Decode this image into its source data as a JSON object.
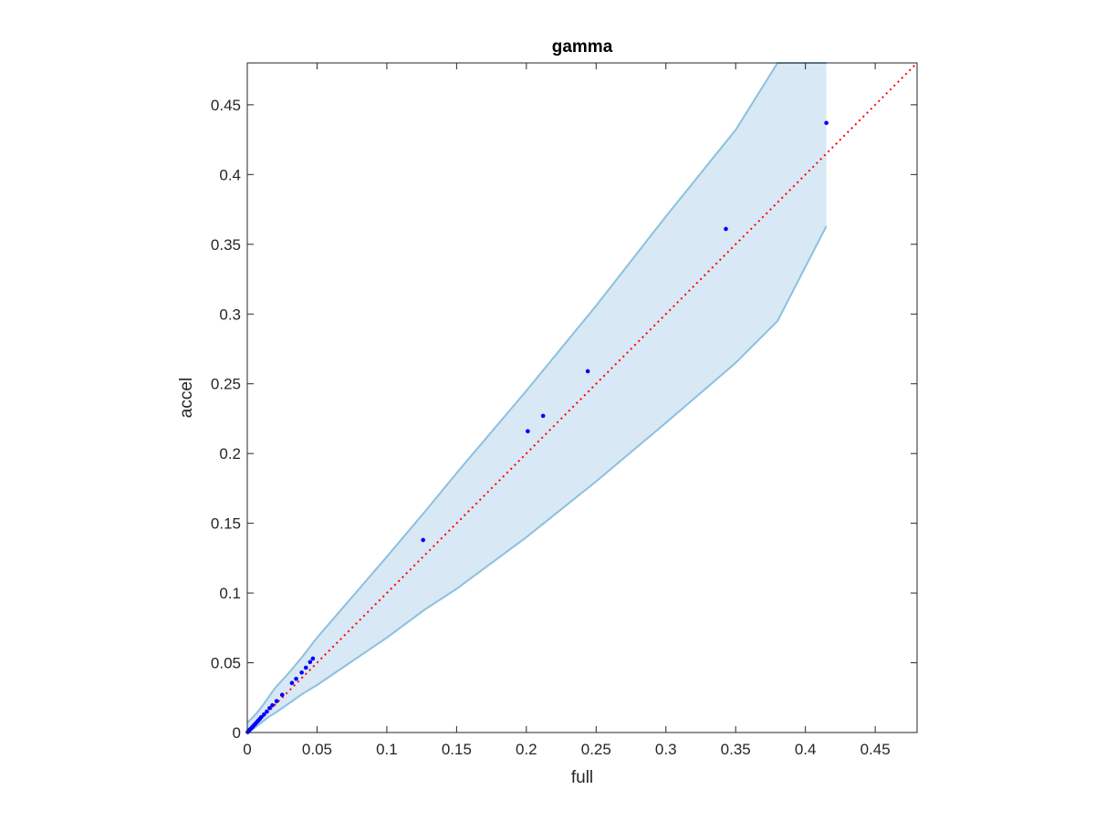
{
  "chart_data": {
    "type": "scatter",
    "title": "gamma",
    "xlabel": "full",
    "ylabel": "accel",
    "xlim": [
      0,
      0.48
    ],
    "ylim": [
      0,
      0.48
    ],
    "xticks": [
      0,
      0.05,
      0.1,
      0.15,
      0.2,
      0.25,
      0.3,
      0.35,
      0.4,
      0.45
    ],
    "xtick_labels": [
      "0",
      "0.05",
      "0.1",
      "0.15",
      "0.2",
      "0.25",
      "0.3",
      "0.35",
      "0.4",
      "0.45"
    ],
    "yticks": [
      0,
      0.05,
      0.1,
      0.15,
      0.2,
      0.25,
      0.3,
      0.35,
      0.4,
      0.45
    ],
    "ytick_labels": [
      "0",
      "0.05",
      "0.1",
      "0.15",
      "0.2",
      "0.25",
      "0.3",
      "0.35",
      "0.4",
      "0.45"
    ],
    "grid": false,
    "points": {
      "x": [
        0.0003,
        0.0008,
        0.0012,
        0.0016,
        0.002,
        0.0025,
        0.003,
        0.0035,
        0.004,
        0.005,
        0.006,
        0.007,
        0.008,
        0.009,
        0.01,
        0.012,
        0.014,
        0.016,
        0.018,
        0.021,
        0.025,
        0.032,
        0.035,
        0.039,
        0.042,
        0.045,
        0.047,
        0.126,
        0.201,
        0.212,
        0.244,
        0.343,
        0.415
      ],
      "y": [
        0.0003,
        0.0009,
        0.0013,
        0.0018,
        0.0022,
        0.0027,
        0.0032,
        0.0038,
        0.0043,
        0.0054,
        0.0065,
        0.0076,
        0.0087,
        0.0098,
        0.011,
        0.013,
        0.015,
        0.0175,
        0.0195,
        0.0225,
        0.027,
        0.0355,
        0.0385,
        0.043,
        0.0465,
        0.0505,
        0.053,
        0.138,
        0.216,
        0.227,
        0.259,
        0.361,
        0.437
      ],
      "color": "#0000ff"
    },
    "band": {
      "x": [
        0,
        0.005,
        0.01,
        0.015,
        0.02,
        0.03,
        0.04,
        0.05,
        0.1,
        0.127,
        0.15,
        0.2,
        0.25,
        0.3,
        0.35,
        0.38,
        0.415
      ],
      "upper": [
        0.007,
        0.012,
        0.018,
        0.025,
        0.032,
        0.043,
        0.055,
        0.068,
        0.126,
        0.158,
        0.186,
        0.245,
        0.306,
        0.37,
        0.432,
        0.48,
        0.48
      ],
      "lower": [
        0,
        0.003,
        0.007,
        0.011,
        0.014,
        0.021,
        0.028,
        0.034,
        0.068,
        0.088,
        0.103,
        0.14,
        0.18,
        0.222,
        0.265,
        0.295,
        0.363
      ],
      "fill_color": "#d8e8f5",
      "line_color": "#8cc0e0"
    },
    "reference_line": {
      "x": [
        0,
        0.48
      ],
      "y": [
        0,
        0.48
      ],
      "color": "#ff0000",
      "style": "dotted"
    }
  }
}
